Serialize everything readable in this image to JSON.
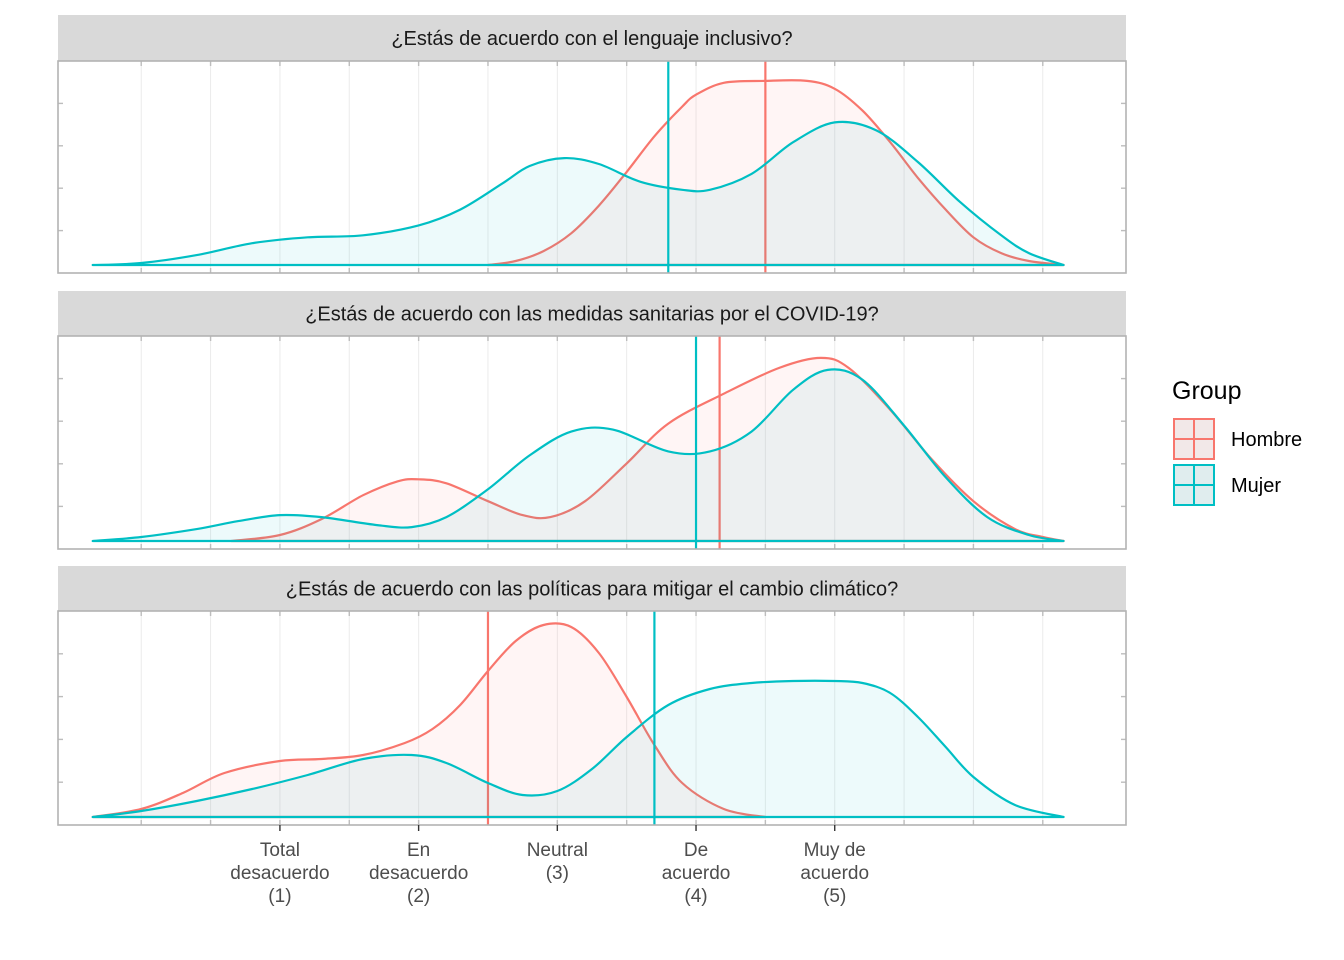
{
  "chart_data": {
    "type": "density",
    "x_ticks": [
      {
        "value": 1,
        "lines": [
          "Total",
          "desacuerdo",
          "(1)"
        ]
      },
      {
        "value": 2,
        "lines": [
          "En",
          "desacuerdo",
          "(2)"
        ]
      },
      {
        "value": 3,
        "lines": [
          "Neutral",
          "(3)"
        ]
      },
      {
        "value": 4,
        "lines": [
          "De",
          "acuerdo",
          "(4)"
        ]
      },
      {
        "value": 5,
        "lines": [
          "Muy de",
          "acuerdo",
          "(5)"
        ]
      }
    ],
    "xlim": [
      -0.6,
      7.1
    ],
    "legend": {
      "title": "Group",
      "position": "right",
      "entries": [
        {
          "name": "Hombre",
          "color": "#F8766D"
        },
        {
          "name": "Mujer",
          "color": "#00BFC4"
        }
      ]
    },
    "panels": [
      {
        "title": "¿Estás de acuerdo con el lenguaje inclusivo?",
        "ymax": 1.0,
        "series": [
          {
            "name": "Hombre",
            "color": "#F8766D",
            "mean": 4.5,
            "x": [
              2.5,
              2.7,
              2.9,
              3.1,
              3.3,
              3.5,
              3.7,
              3.9,
              4.0,
              4.2,
              4.5,
              4.8,
              5.0,
              5.2,
              5.4,
              5.6,
              5.8,
              6.0,
              6.2,
              6.4,
              6.65
            ],
            "y": [
              0.0,
              0.02,
              0.07,
              0.16,
              0.3,
              0.47,
              0.65,
              0.8,
              0.86,
              0.92,
              0.93,
              0.93,
              0.89,
              0.78,
              0.62,
              0.44,
              0.28,
              0.14,
              0.06,
              0.02,
              0.0
            ]
          },
          {
            "name": "Mujer",
            "color": "#00BFC4",
            "mean": 3.8,
            "x": [
              -0.35,
              0.0,
              0.4,
              0.8,
              1.2,
              1.6,
              2.0,
              2.3,
              2.6,
              2.8,
              3.05,
              3.3,
              3.6,
              3.9,
              4.1,
              4.4,
              4.7,
              5.0,
              5.3,
              5.6,
              5.9,
              6.2,
              6.4,
              6.65
            ],
            "y": [
              0.0,
              0.01,
              0.05,
              0.11,
              0.14,
              0.15,
              0.2,
              0.28,
              0.41,
              0.5,
              0.54,
              0.51,
              0.42,
              0.38,
              0.38,
              0.46,
              0.62,
              0.72,
              0.68,
              0.52,
              0.32,
              0.15,
              0.06,
              0.0
            ]
          }
        ]
      },
      {
        "title": "¿Estás de acuerdo con las medidas sanitarias por el COVID-19?",
        "ymax": 1.0,
        "series": [
          {
            "name": "Hombre",
            "color": "#F8766D",
            "mean": 4.17,
            "x": [
              0.65,
              1.0,
              1.3,
              1.6,
              1.85,
              2.0,
              2.2,
              2.5,
              2.75,
              2.95,
              3.2,
              3.5,
              3.8,
              4.2,
              4.6,
              4.9,
              5.1,
              5.4,
              5.7,
              6.0,
              6.3,
              6.5,
              6.65
            ],
            "y": [
              0.0,
              0.03,
              0.11,
              0.23,
              0.3,
              0.31,
              0.29,
              0.2,
              0.13,
              0.12,
              0.2,
              0.39,
              0.59,
              0.74,
              0.87,
              0.92,
              0.87,
              0.66,
              0.41,
              0.2,
              0.06,
              0.02,
              0.0
            ]
          },
          {
            "name": "Mujer",
            "color": "#00BFC4",
            "mean": 4.0,
            "x": [
              -0.35,
              0.0,
              0.4,
              0.7,
              1.0,
              1.3,
              1.7,
              1.95,
              2.2,
              2.5,
              2.8,
              3.1,
              3.4,
              3.8,
              4.1,
              4.4,
              4.7,
              4.95,
              5.2,
              5.5,
              5.8,
              6.1,
              6.4,
              6.65
            ],
            "y": [
              0.0,
              0.02,
              0.06,
              0.1,
              0.13,
              0.12,
              0.08,
              0.07,
              0.12,
              0.26,
              0.43,
              0.55,
              0.56,
              0.45,
              0.45,
              0.55,
              0.76,
              0.86,
              0.81,
              0.58,
              0.32,
              0.12,
              0.03,
              0.0
            ]
          }
        ]
      },
      {
        "title": "¿Estás de acuerdo con las políticas para mitigar el cambio climático?",
        "ymax": 1.0,
        "series": [
          {
            "name": "Hombre",
            "color": "#F8766D",
            "mean": 2.5,
            "x": [
              -0.35,
              0.0,
              0.3,
              0.6,
              1.0,
              1.3,
              1.6,
              1.9,
              2.1,
              2.3,
              2.5,
              2.7,
              2.9,
              3.1,
              3.3,
              3.5,
              3.7,
              3.9,
              4.2,
              4.5
            ],
            "y": [
              0.0,
              0.04,
              0.12,
              0.22,
              0.28,
              0.29,
              0.31,
              0.37,
              0.44,
              0.56,
              0.73,
              0.88,
              0.96,
              0.95,
              0.82,
              0.6,
              0.36,
              0.17,
              0.04,
              0.0
            ]
          },
          {
            "name": "Mujer",
            "color": "#00BFC4",
            "mean": 3.7,
            "x": [
              -0.35,
              0.0,
              0.4,
              0.8,
              1.2,
              1.6,
              1.95,
              2.2,
              2.5,
              2.75,
              3.0,
              3.25,
              3.5,
              3.8,
              4.1,
              4.4,
              4.7,
              5.0,
              5.2,
              5.4,
              5.6,
              5.8,
              6.0,
              6.3,
              6.65
            ],
            "y": [
              0.0,
              0.03,
              0.08,
              0.14,
              0.21,
              0.29,
              0.31,
              0.27,
              0.17,
              0.11,
              0.13,
              0.24,
              0.4,
              0.56,
              0.64,
              0.67,
              0.68,
              0.68,
              0.67,
              0.62,
              0.5,
              0.35,
              0.2,
              0.06,
              0.0
            ]
          }
        ]
      }
    ]
  }
}
